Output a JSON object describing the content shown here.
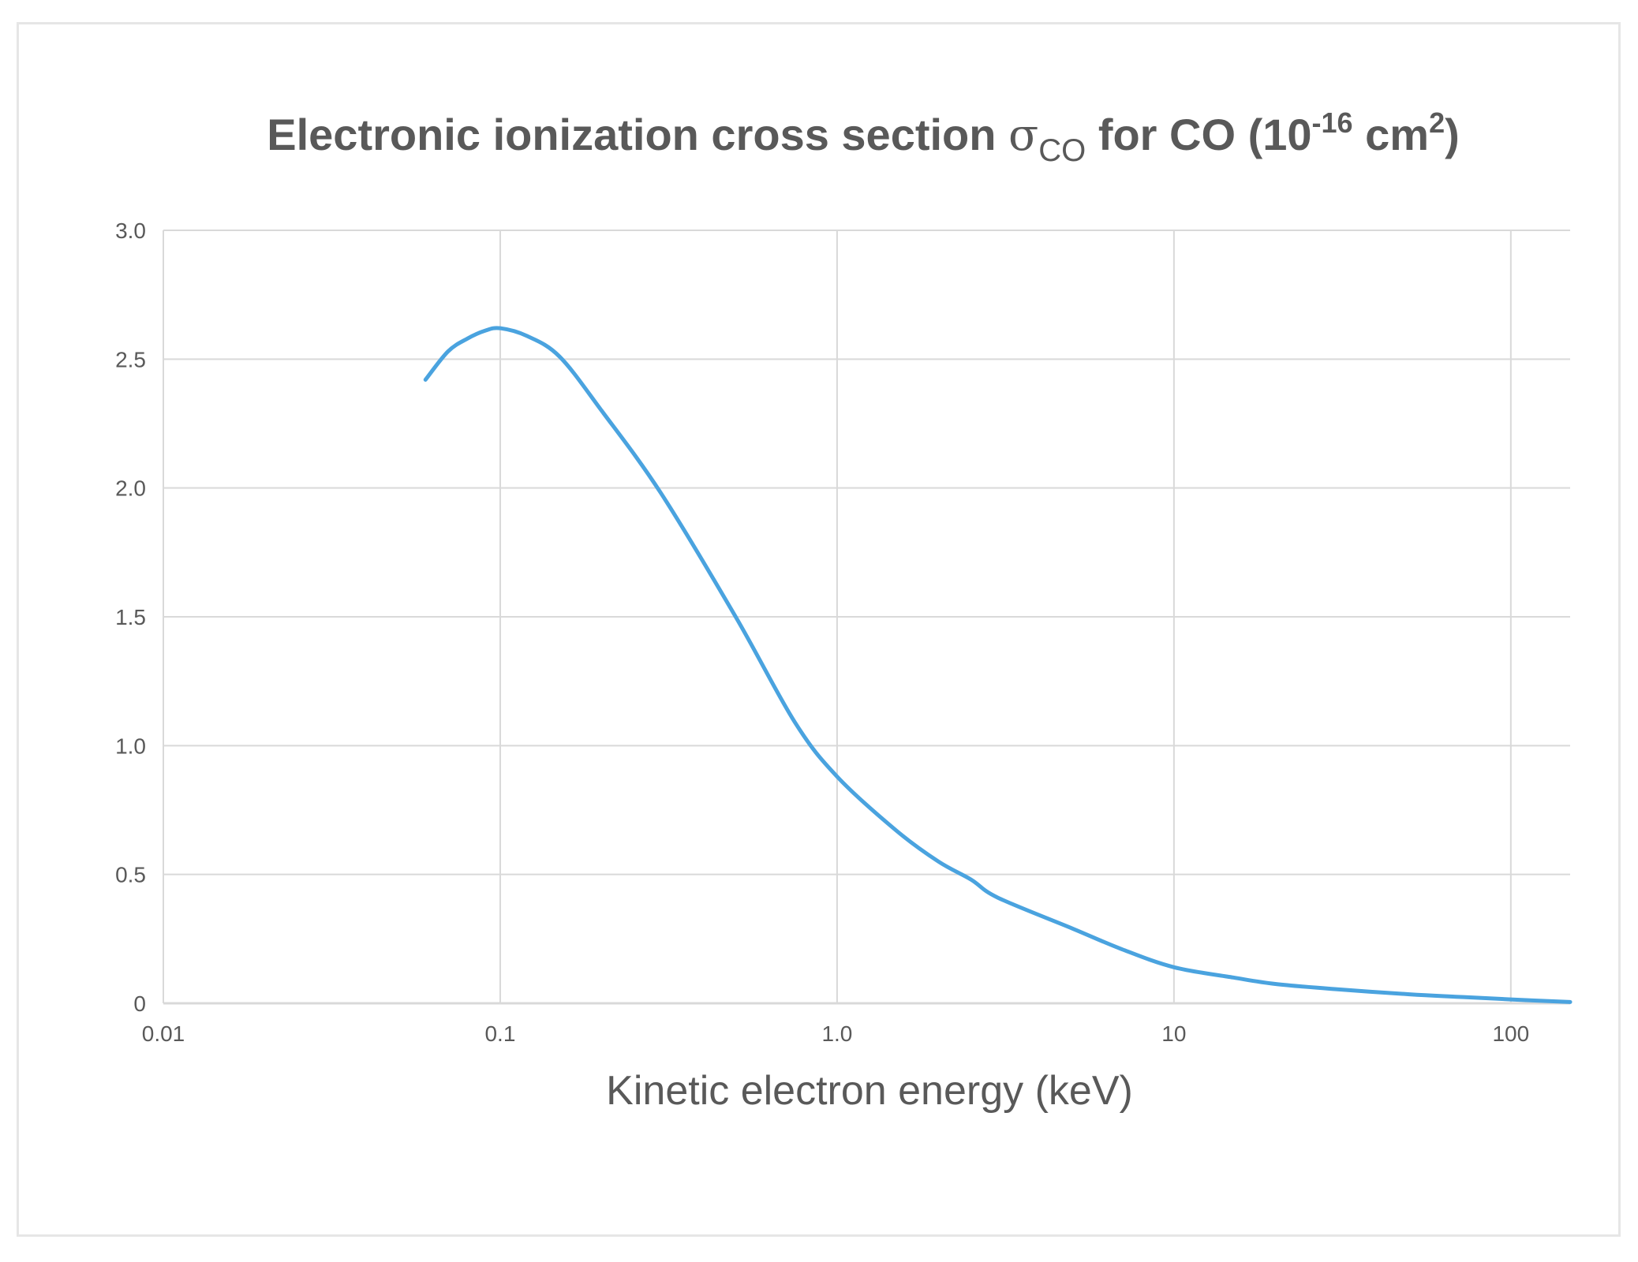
{
  "chart_data": {
    "type": "line",
    "title": {
      "main": "Electronic ionization cross section ",
      "symbol": "σ",
      "subscript": "CO",
      "after": " for CO (10",
      "exponent": "-16",
      "unit_space": " cm",
      "unit_exponent": "2",
      "close": ")"
    },
    "xlabel": "Kinetic electron energy (keV)",
    "ylabel": "",
    "x_scale": "log",
    "xlim": [
      0.01,
      150
    ],
    "ylim": [
      0,
      3.0
    ],
    "x_ticks": [
      {
        "value": 0.01,
        "label": "0.01"
      },
      {
        "value": 0.1,
        "label": "0.1"
      },
      {
        "value": 1.0,
        "label": "1.0"
      },
      {
        "value": 10,
        "label": "10"
      },
      {
        "value": 100,
        "label": "100"
      }
    ],
    "y_ticks": [
      {
        "value": 0,
        "label": "0"
      },
      {
        "value": 0.5,
        "label": "0.5"
      },
      {
        "value": 1.0,
        "label": "1.0"
      },
      {
        "value": 1.5,
        "label": "1.5"
      },
      {
        "value": 2.0,
        "label": "2.0"
      },
      {
        "value": 2.5,
        "label": "2.5"
      },
      {
        "value": 3.0,
        "label": "3.0"
      }
    ],
    "grid": true,
    "series": [
      {
        "name": "sigma_CO",
        "color": "#4aa3df",
        "x": [
          0.06,
          0.07,
          0.08,
          0.09,
          0.1,
          0.12,
          0.15,
          0.2,
          0.3,
          0.5,
          0.75,
          1.0,
          1.5,
          2.0,
          2.5,
          3.0,
          5.0,
          7.0,
          10,
          15,
          20,
          30,
          50,
          70,
          100,
          150
        ],
        "y": [
          2.42,
          2.53,
          2.58,
          2.61,
          2.62,
          2.59,
          2.51,
          2.3,
          1.98,
          1.5,
          1.09,
          0.88,
          0.67,
          0.55,
          0.48,
          0.41,
          0.29,
          0.21,
          0.14,
          0.1,
          0.075,
          0.055,
          0.035,
          0.025,
          0.015,
          0.005
        ]
      }
    ]
  }
}
